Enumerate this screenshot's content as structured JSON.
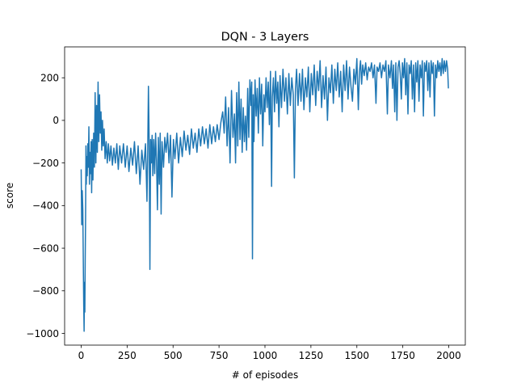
{
  "chart_data": {
    "type": "line",
    "title": "DQN - 3 Layers",
    "xlabel": "# of episodes",
    "ylabel": "score",
    "xlim": [
      -90,
      2090
    ],
    "ylim": [
      -1055,
      345
    ],
    "xticks": [
      0,
      250,
      500,
      750,
      1000,
      1250,
      1500,
      1750,
      2000
    ],
    "xtick_labels": [
      "0",
      "250",
      "500",
      "750",
      "1000",
      "1250",
      "1500",
      "1750",
      "2000"
    ],
    "yticks": [
      -1000,
      -800,
      -600,
      -400,
      -200,
      0,
      200
    ],
    "ytick_labels": [
      "−1000",
      "−800",
      "−600",
      "−400",
      "−200",
      "0",
      "200"
    ],
    "grid": false,
    "legend": "none",
    "series": [
      {
        "color": "#1f77b4",
        "points": [
          [
            0,
            -230
          ],
          [
            3,
            -490
          ],
          [
            6,
            -330
          ],
          [
            9,
            -420
          ],
          [
            12,
            -700
          ],
          [
            14,
            -870
          ],
          [
            16,
            -990
          ],
          [
            18,
            -760
          ],
          [
            20,
            -900
          ],
          [
            22,
            -650
          ],
          [
            24,
            -460
          ],
          [
            26,
            -120
          ],
          [
            28,
            -300
          ],
          [
            30,
            -170
          ],
          [
            33,
            -260
          ],
          [
            36,
            -110
          ],
          [
            39,
            -220
          ],
          [
            42,
            -30
          ],
          [
            45,
            -300
          ],
          [
            48,
            -150
          ],
          [
            51,
            -250
          ],
          [
            54,
            -100
          ],
          [
            57,
            -340
          ],
          [
            60,
            -90
          ],
          [
            64,
            -280
          ],
          [
            68,
            -60
          ],
          [
            72,
            -220
          ],
          [
            76,
            130
          ],
          [
            80,
            -200
          ],
          [
            84,
            70
          ],
          [
            88,
            -150
          ],
          [
            92,
            180
          ],
          [
            96,
            -100
          ],
          [
            100,
            120
          ],
          [
            104,
            -60
          ],
          [
            108,
            40
          ],
          [
            112,
            -140
          ],
          [
            116,
            0
          ],
          [
            120,
            -120
          ],
          [
            125,
            -40
          ],
          [
            130,
            -180
          ],
          [
            136,
            -100
          ],
          [
            142,
            -200
          ],
          [
            148,
            -110
          ],
          [
            155,
            -190
          ],
          [
            162,
            -120
          ],
          [
            170,
            -210
          ],
          [
            178,
            -130
          ],
          [
            186,
            -200
          ],
          [
            194,
            -110
          ],
          [
            202,
            -230
          ],
          [
            210,
            -120
          ],
          [
            220,
            -200
          ],
          [
            230,
            -110
          ],
          [
            240,
            -220
          ],
          [
            250,
            -120
          ],
          [
            260,
            -240
          ],
          [
            270,
            -130
          ],
          [
            280,
            -210
          ],
          [
            290,
            -100
          ],
          [
            300,
            -250
          ],
          [
            310,
            -120
          ],
          [
            320,
            -300
          ],
          [
            330,
            -140
          ],
          [
            340,
            -230
          ],
          [
            350,
            -110
          ],
          [
            358,
            -380
          ],
          [
            362,
            -150
          ],
          [
            366,
            160
          ],
          [
            370,
            -100
          ],
          [
            374,
            -700
          ],
          [
            378,
            -90
          ],
          [
            382,
            -200
          ],
          [
            386,
            -70
          ],
          [
            390,
            -260
          ],
          [
            395,
            -90
          ],
          [
            400,
            -250
          ],
          [
            405,
            -60
          ],
          [
            410,
            -190
          ],
          [
            415,
            -420
          ],
          [
            420,
            -80
          ],
          [
            425,
            -300
          ],
          [
            430,
            -60
          ],
          [
            435,
            -440
          ],
          [
            440,
            -100
          ],
          [
            448,
            -220
          ],
          [
            455,
            -80
          ],
          [
            462,
            -150
          ],
          [
            470,
            -60
          ],
          [
            478,
            -200
          ],
          [
            486,
            -70
          ],
          [
            494,
            -360
          ],
          [
            502,
            -90
          ],
          [
            510,
            -180
          ],
          [
            520,
            -60
          ],
          [
            530,
            -200
          ],
          [
            540,
            -80
          ],
          [
            550,
            -170
          ],
          [
            560,
            -50
          ],
          [
            570,
            -140
          ],
          [
            580,
            -70
          ],
          [
            590,
            -160
          ],
          [
            600,
            -40
          ],
          [
            610,
            -130
          ],
          [
            620,
            -60
          ],
          [
            630,
            -150
          ],
          [
            640,
            -40
          ],
          [
            650,
            -120
          ],
          [
            660,
            -30
          ],
          [
            670,
            -110
          ],
          [
            680,
            -40
          ],
          [
            690,
            -130
          ],
          [
            700,
            -20
          ],
          [
            710,
            -110
          ],
          [
            720,
            -30
          ],
          [
            730,
            -100
          ],
          [
            740,
            -20
          ],
          [
            750,
            -90
          ],
          [
            760,
            -10
          ],
          [
            770,
            40
          ],
          [
            778,
            -60
          ],
          [
            786,
            110
          ],
          [
            794,
            -120
          ],
          [
            802,
            60
          ],
          [
            810,
            -200
          ],
          [
            818,
            140
          ],
          [
            826,
            -80
          ],
          [
            834,
            30
          ],
          [
            840,
            -200
          ],
          [
            846,
            130
          ],
          [
            852,
            -120
          ],
          [
            858,
            180
          ],
          [
            864,
            -90
          ],
          [
            870,
            100
          ],
          [
            876,
            -150
          ],
          [
            882,
            60
          ],
          [
            888,
            -100
          ],
          [
            894,
            20
          ],
          [
            900,
            -140
          ],
          [
            906,
            150
          ],
          [
            912,
            -80
          ],
          [
            918,
            190
          ],
          [
            924,
            70
          ],
          [
            928,
            180
          ],
          [
            932,
            -650
          ],
          [
            936,
            120
          ],
          [
            940,
            -100
          ],
          [
            946,
            190
          ],
          [
            952,
            20
          ],
          [
            958,
            150
          ],
          [
            964,
            -60
          ],
          [
            970,
            200
          ],
          [
            976,
            30
          ],
          [
            982,
            170
          ],
          [
            988,
            -120
          ],
          [
            994,
            120
          ],
          [
            1000,
            40
          ],
          [
            1006,
            200
          ],
          [
            1012,
            60
          ],
          [
            1018,
            180
          ],
          [
            1024,
            -20
          ],
          [
            1030,
            230
          ],
          [
            1036,
            -310
          ],
          [
            1040,
            110
          ],
          [
            1046,
            200
          ],
          [
            1052,
            40
          ],
          [
            1058,
            230
          ],
          [
            1064,
            80
          ],
          [
            1070,
            180
          ],
          [
            1076,
            -30
          ],
          [
            1082,
            210
          ],
          [
            1090,
            60
          ],
          [
            1098,
            240
          ],
          [
            1106,
            90
          ],
          [
            1114,
            200
          ],
          [
            1122,
            30
          ],
          [
            1130,
            220
          ],
          [
            1138,
            70
          ],
          [
            1146,
            200
          ],
          [
            1154,
            120
          ],
          [
            1160,
            -270
          ],
          [
            1166,
            150
          ],
          [
            1172,
            240
          ],
          [
            1180,
            70
          ],
          [
            1188,
            220
          ],
          [
            1196,
            90
          ],
          [
            1204,
            240
          ],
          [
            1212,
            50
          ],
          [
            1220,
            200
          ],
          [
            1228,
            110
          ],
          [
            1236,
            250
          ],
          [
            1244,
            40
          ],
          [
            1252,
            220
          ],
          [
            1260,
            120
          ],
          [
            1268,
            260
          ],
          [
            1276,
            70
          ],
          [
            1284,
            230
          ],
          [
            1292,
            140
          ],
          [
            1300,
            280
          ],
          [
            1308,
            60
          ],
          [
            1316,
            210
          ],
          [
            1324,
            100
          ],
          [
            1332,
            250
          ],
          [
            1340,
            0
          ],
          [
            1348,
            200
          ],
          [
            1356,
            130
          ],
          [
            1364,
            260
          ],
          [
            1372,
            80
          ],
          [
            1380,
            240
          ],
          [
            1388,
            140
          ],
          [
            1396,
            270
          ],
          [
            1404,
            110
          ],
          [
            1412,
            230
          ],
          [
            1420,
            40
          ],
          [
            1428,
            260
          ],
          [
            1436,
            140
          ],
          [
            1444,
            280
          ],
          [
            1452,
            100
          ],
          [
            1460,
            250
          ],
          [
            1468,
            160
          ],
          [
            1476,
            90
          ],
          [
            1484,
            240
          ],
          [
            1492,
            170
          ],
          [
            1500,
            290
          ],
          [
            1508,
            50
          ],
          [
            1514,
            230
          ],
          [
            1520,
            280
          ],
          [
            1526,
            170
          ],
          [
            1532,
            260
          ],
          [
            1540,
            210
          ],
          [
            1548,
            270
          ],
          [
            1556,
            190
          ],
          [
            1564,
            250
          ],
          [
            1572,
            230
          ],
          [
            1580,
            270
          ],
          [
            1588,
            200
          ],
          [
            1596,
            260
          ],
          [
            1604,
            80
          ],
          [
            1610,
            250
          ],
          [
            1618,
            230
          ],
          [
            1626,
            270
          ],
          [
            1634,
            200
          ],
          [
            1642,
            260
          ],
          [
            1650,
            230
          ],
          [
            1658,
            280
          ],
          [
            1666,
            30
          ],
          [
            1672,
            260
          ],
          [
            1680,
            200
          ],
          [
            1688,
            280
          ],
          [
            1694,
            150
          ],
          [
            1700,
            260
          ],
          [
            1706,
            40
          ],
          [
            1712,
            270
          ],
          [
            1718,
            0
          ],
          [
            1724,
            250
          ],
          [
            1730,
            280
          ],
          [
            1736,
            220
          ],
          [
            1742,
            100
          ],
          [
            1748,
            270
          ],
          [
            1754,
            200
          ],
          [
            1760,
            290
          ],
          [
            1766,
            120
          ],
          [
            1772,
            270
          ],
          [
            1778,
            30
          ],
          [
            1784,
            260
          ],
          [
            1790,
            220
          ],
          [
            1796,
            280
          ],
          [
            1802,
            100
          ],
          [
            1808,
            260
          ],
          [
            1814,
            40
          ],
          [
            1820,
            270
          ],
          [
            1826,
            180
          ],
          [
            1832,
            280
          ],
          [
            1838,
            90
          ],
          [
            1844,
            260
          ],
          [
            1850,
            200
          ],
          [
            1856,
            280
          ],
          [
            1862,
            20
          ],
          [
            1868,
            270
          ],
          [
            1874,
            230
          ],
          [
            1880,
            280
          ],
          [
            1886,
            140
          ],
          [
            1892,
            270
          ],
          [
            1898,
            110
          ],
          [
            1904,
            280
          ],
          [
            1910,
            220
          ],
          [
            1916,
            270
          ],
          [
            1922,
            20
          ],
          [
            1928,
            260
          ],
          [
            1934,
            200
          ],
          [
            1940,
            280
          ],
          [
            1946,
            230
          ],
          [
            1952,
            270
          ],
          [
            1958,
            210
          ],
          [
            1964,
            290
          ],
          [
            1970,
            220
          ],
          [
            1976,
            280
          ],
          [
            1982,
            230
          ],
          [
            1988,
            280
          ],
          [
            1994,
            240
          ],
          [
            1998,
            150
          ]
        ]
      }
    ]
  }
}
